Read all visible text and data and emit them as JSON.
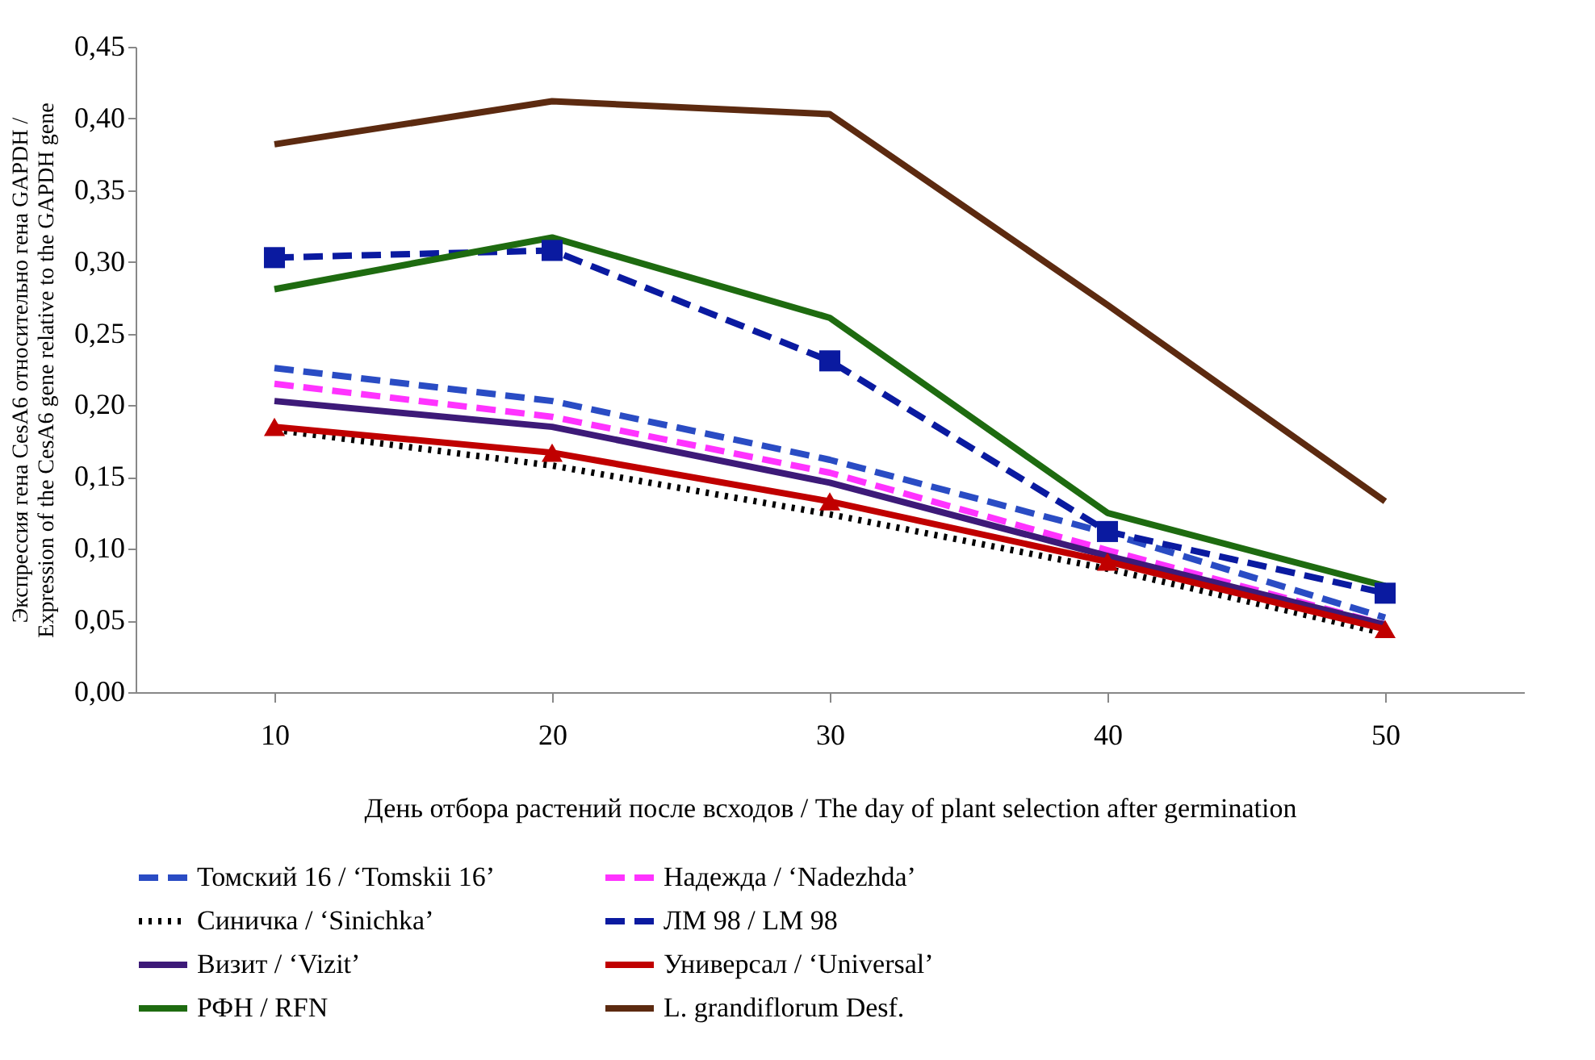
{
  "chart_data": {
    "type": "line",
    "xlabel": "День отбора растений после всходов / The day of plant selection after germination",
    "ylabel": "Экспрессия гена CesA6 относительно гена GAPDH /\nExpression of the CesA6 gene relative to the GAPDH gene",
    "categories": [
      "10",
      "20",
      "30",
      "40",
      "50"
    ],
    "ylim": [
      0,
      0.45
    ],
    "yticks": [
      {
        "value": 0,
        "label": "0,00"
      },
      {
        "value": 0.05,
        "label": "0,05"
      },
      {
        "value": 0.1,
        "label": "0,10"
      },
      {
        "value": 0.15,
        "label": "0,15"
      },
      {
        "value": 0.2,
        "label": "0,20"
      },
      {
        "value": 0.25,
        "label": "0,25"
      },
      {
        "value": 0.3,
        "label": "0,30"
      },
      {
        "value": 0.35,
        "label": "0,35"
      },
      {
        "value": 0.4,
        "label": "0,40"
      },
      {
        "value": 0.45,
        "label": "0,45"
      }
    ],
    "grid": false,
    "legend": "bottom",
    "series": [
      {
        "name": "Томский 16 / ‘Tomskii 16’",
        "color": "#2a4cc4",
        "line_style": "dashed",
        "marker": "none",
        "values": [
          0.226,
          0.203,
          0.162,
          0.111,
          0.052
        ]
      },
      {
        "name": "Надежда / ‘Nadezhda’",
        "color": "#ff33ff",
        "line_style": "dashed",
        "marker": "none",
        "values": [
          0.215,
          0.192,
          0.153,
          0.099,
          0.047
        ]
      },
      {
        "name": "Синичка / ‘Sinichka’",
        "color": "#000000",
        "line_style": "dotted",
        "marker": "none",
        "values": [
          0.183,
          0.158,
          0.124,
          0.086,
          0.041
        ]
      },
      {
        "name": "ЛМ 98 / LM 98",
        "color": "#0a1aa0",
        "line_style": "dashed",
        "marker": "square",
        "values": [
          0.303,
          0.308,
          0.231,
          0.112,
          0.069
        ]
      },
      {
        "name": "Визит / ‘Vizit’",
        "color": "#3d1a78",
        "line_style": "solid",
        "marker": "none",
        "values": [
          0.203,
          0.185,
          0.146,
          0.095,
          0.047
        ]
      },
      {
        "name": "Универсал / ‘Universal’",
        "color": "#c00000",
        "line_style": "solid",
        "marker": "triangle",
        "values": [
          0.185,
          0.167,
          0.133,
          0.091,
          0.044
        ]
      },
      {
        "name": "РФН / RFN",
        "color": "#1e6b10",
        "line_style": "solid",
        "marker": "none",
        "values": [
          0.281,
          0.317,
          0.261,
          0.125,
          0.074
        ]
      },
      {
        "name": "L. grandiflorum Desf.",
        "color": "#5c2a10",
        "line_style": "solid",
        "marker": "none",
        "values": [
          0.382,
          0.412,
          0.403,
          0.27,
          0.133
        ]
      }
    ]
  }
}
